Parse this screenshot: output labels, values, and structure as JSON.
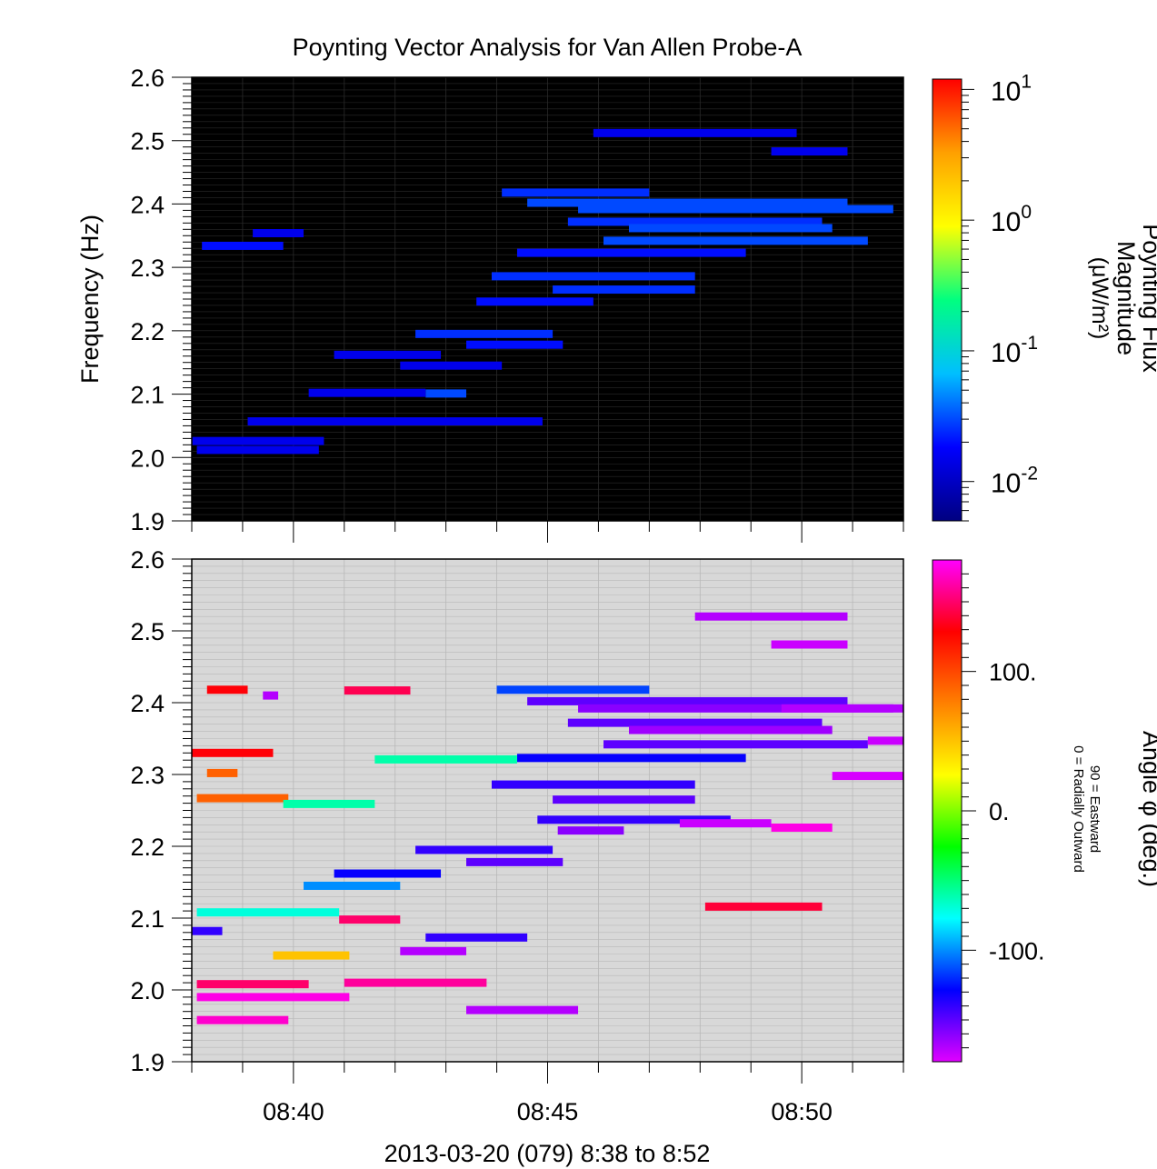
{
  "figure": {
    "title": "Poynting Vector Analysis for Van Allen Probe-A",
    "xlabel": "2013-03-20 (079) 8:38 to 8:52"
  },
  "chart_data": [
    {
      "type": "heatmap",
      "panel": "top",
      "ylabel": "Frequency (Hz)",
      "ylim": [
        1.9,
        2.6
      ],
      "yticks": [
        "1.9",
        "2.0",
        "2.1",
        "2.2",
        "2.3",
        "2.4",
        "2.5",
        "2.6"
      ],
      "xlim": [
        "08:38",
        "08:52"
      ],
      "xticks": [
        "08:40",
        "08:45",
        "08:50"
      ],
      "background": "#000000",
      "colorbar": {
        "label_lines": [
          "Poynting Flux",
          "Magnitude",
          "(μW/m²)"
        ],
        "scale": "log",
        "range": [
          0.005,
          12
        ],
        "tick_labels": [
          {
            "base": "10",
            "exp": "1",
            "value": 10
          },
          {
            "base": "10",
            "exp": "0",
            "value": 1
          },
          {
            "base": "10",
            "exp": "-1",
            "value": 0.1
          },
          {
            "base": "10",
            "exp": "-2",
            "value": 0.01
          }
        ],
        "colors": [
          "#000080",
          "#0000ff",
          "#00bfff",
          "#00ff80",
          "#ffff00",
          "#ffa000",
          "#ff0000"
        ]
      },
      "segments_note": "t0,t1 in minutes after 08:38; f in Hz; v = flux (μW/m²)",
      "segments": [
        [
          6.1,
          9.0,
          2.418,
          0.025
        ],
        [
          6.6,
          12.9,
          2.402,
          0.03
        ],
        [
          7.6,
          13.8,
          2.392,
          0.03
        ],
        [
          7.4,
          12.4,
          2.372,
          0.025
        ],
        [
          8.6,
          12.6,
          2.362,
          0.03
        ],
        [
          8.1,
          13.3,
          2.342,
          0.03
        ],
        [
          6.4,
          10.9,
          2.323,
          0.02
        ],
        [
          5.9,
          9.9,
          2.286,
          0.025
        ],
        [
          7.1,
          9.9,
          2.265,
          0.025
        ],
        [
          5.6,
          7.9,
          2.246,
          0.02
        ],
        [
          4.4,
          7.1,
          2.195,
          0.025
        ],
        [
          5.4,
          7.3,
          2.178,
          0.02
        ],
        [
          2.8,
          4.9,
          2.162,
          0.015
        ],
        [
          4.1,
          6.1,
          2.145,
          0.015
        ],
        [
          4.6,
          5.4,
          2.101,
          0.03
        ],
        [
          2.3,
          4.6,
          2.102,
          0.015
        ],
        [
          7.9,
          11.9,
          2.512,
          0.015
        ],
        [
          11.4,
          12.9,
          2.483,
          0.015
        ],
        [
          0.2,
          1.8,
          2.334,
          0.02
        ],
        [
          1.2,
          2.2,
          2.354,
          0.015
        ],
        [
          0.0,
          2.6,
          2.026,
          0.015
        ],
        [
          0.1,
          2.5,
          2.012,
          0.015
        ],
        [
          1.1,
          6.9,
          2.057,
          0.015
        ]
      ]
    },
    {
      "type": "heatmap",
      "panel": "bottom",
      "ylabel": "",
      "ylim": [
        1.9,
        2.6
      ],
      "yticks": [
        "1.9",
        "2.0",
        "2.1",
        "2.2",
        "2.3",
        "2.4",
        "2.5",
        "2.6"
      ],
      "xlim": [
        "08:38",
        "08:52"
      ],
      "xticks": [
        "08:40",
        "08:45",
        "08:50"
      ],
      "background": "#d8d8d8",
      "colorbar": {
        "label": "Angle φ (deg.)",
        "sublabel_lines": [
          "0 = Radially Outward",
          "90 = Eastward"
        ],
        "scale": "linear",
        "range": [
          -180,
          180
        ],
        "tick_labels": [
          {
            "text": "100.",
            "value": 100
          },
          {
            "text": "0.",
            "value": 0
          },
          {
            "text": "-100.",
            "value": -100
          }
        ],
        "colors": [
          "#e000ff",
          "#0000ff",
          "#00ffff",
          "#00ff00",
          "#ffff00",
          "#ff8000",
          "#ff0000",
          "#ff00ff"
        ]
      },
      "segments_note": "t0,t1 in minutes after 08:38; f in Hz; v = angle φ (deg.)",
      "segments": [
        [
          3.0,
          4.3,
          2.417,
          145
        ],
        [
          6.0,
          9.0,
          2.418,
          -115
        ],
        [
          6.6,
          12.9,
          2.402,
          -150
        ],
        [
          7.6,
          13.8,
          2.392,
          -160
        ],
        [
          7.4,
          12.4,
          2.372,
          -150
        ],
        [
          8.6,
          12.6,
          2.362,
          -165
        ],
        [
          8.1,
          13.3,
          2.342,
          -150
        ],
        [
          6.4,
          10.9,
          2.323,
          -130
        ],
        [
          5.9,
          9.9,
          2.286,
          -140
        ],
        [
          7.1,
          9.9,
          2.265,
          -150
        ],
        [
          3.6,
          6.4,
          2.321,
          -60
        ],
        [
          0.0,
          1.6,
          2.33,
          130
        ],
        [
          0.1,
          1.9,
          2.267,
          90
        ],
        [
          1.8,
          3.6,
          2.259,
          -60
        ],
        [
          2.2,
          4.1,
          2.145,
          -100
        ],
        [
          0.1,
          2.9,
          2.108,
          -70
        ],
        [
          2.9,
          4.1,
          2.098,
          150
        ],
        [
          4.6,
          6.6,
          2.073,
          -140
        ],
        [
          0.1,
          2.3,
          2.008,
          150
        ],
        [
          0.1,
          3.1,
          1.99,
          175
        ],
        [
          3.0,
          5.8,
          2.01,
          160
        ],
        [
          5.4,
          7.6,
          1.972,
          -170
        ],
        [
          4.1,
          5.4,
          2.054,
          -170
        ],
        [
          9.9,
          12.9,
          2.52,
          -170
        ],
        [
          11.4,
          12.9,
          2.481,
          -175
        ],
        [
          6.8,
          10.6,
          2.237,
          -140
        ],
        [
          4.4,
          7.1,
          2.195,
          -140
        ],
        [
          5.4,
          7.3,
          2.178,
          -150
        ],
        [
          2.8,
          4.9,
          2.162,
          -130
        ],
        [
          0.0,
          0.6,
          2.082,
          -140
        ],
        [
          7.2,
          8.5,
          2.222,
          -160
        ],
        [
          1.6,
          3.1,
          2.048,
          50
        ],
        [
          0.1,
          1.9,
          1.958,
          170
        ],
        [
          9.6,
          11.4,
          2.232,
          -175
        ],
        [
          11.4,
          12.6,
          2.226,
          175
        ],
        [
          10.1,
          12.4,
          2.116,
          140
        ],
        [
          0.3,
          1.1,
          2.418,
          130
        ],
        [
          1.4,
          1.7,
          2.41,
          -170
        ],
        [
          0.3,
          0.9,
          2.302,
          90
        ],
        [
          11.6,
          14.1,
          2.392,
          -170
        ],
        [
          13.3,
          15.1,
          2.347,
          -175
        ],
        [
          12.6,
          14.1,
          2.298,
          -178
        ]
      ]
    }
  ]
}
